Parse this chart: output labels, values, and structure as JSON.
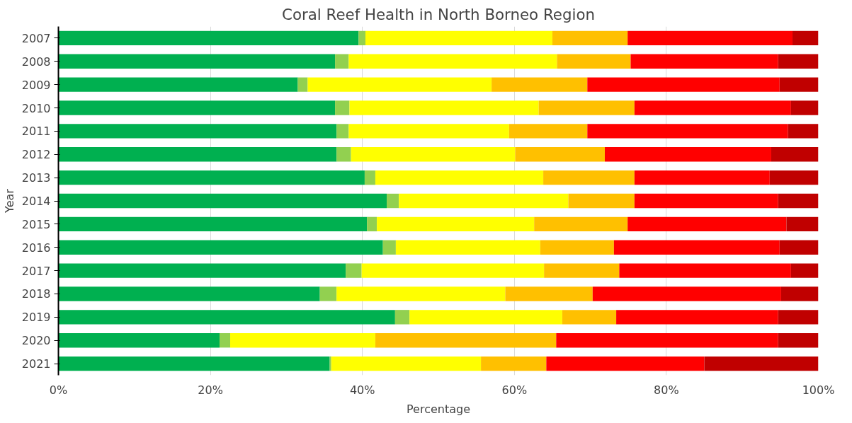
{
  "chart_data": {
    "type": "bar",
    "orientation": "horizontal",
    "stacked": true,
    "title": "Coral Reef Health in North Borneo Region",
    "xlabel": "Percentage",
    "ylabel": "Year",
    "categories": [
      "2007",
      "2008",
      "2009",
      "2010",
      "2011",
      "2012",
      "2013",
      "2014",
      "2015",
      "2016",
      "2017",
      "2018",
      "2019",
      "2020",
      "2021"
    ],
    "series": [
      {
        "color": "#00b050",
        "values": [
          39.5,
          36.4,
          31.5,
          36.4,
          36.6,
          36.6,
          40.3,
          43.2,
          40.6,
          42.7,
          37.8,
          34.4,
          44.3,
          21.2,
          35.7
        ]
      },
      {
        "color": "#92d050",
        "values": [
          0.9,
          1.8,
          1.3,
          1.9,
          1.6,
          1.9,
          1.4,
          1.6,
          1.3,
          1.7,
          2.1,
          2.2,
          1.9,
          1.4,
          0.2
        ]
      },
      {
        "color": "#ffff00",
        "values": [
          24.6,
          27.4,
          24.2,
          24.9,
          21.1,
          21.6,
          22.1,
          22.3,
          20.7,
          19.0,
          24.0,
          22.2,
          20.1,
          19.1,
          19.7
        ]
      },
      {
        "color": "#ffc000",
        "values": [
          9.9,
          9.7,
          12.6,
          12.6,
          10.3,
          11.8,
          12.0,
          8.7,
          12.3,
          9.7,
          9.9,
          11.5,
          7.1,
          23.8,
          8.6
        ]
      },
      {
        "color": "#ff0000",
        "values": [
          21.7,
          19.4,
          25.3,
          20.6,
          26.4,
          21.9,
          17.8,
          18.9,
          20.9,
          21.8,
          22.6,
          24.8,
          21.3,
          29.2,
          20.8
        ]
      },
      {
        "color": "#c00000",
        "values": [
          3.4,
          5.3,
          5.1,
          3.6,
          4.0,
          6.2,
          6.4,
          5.3,
          4.2,
          5.1,
          3.6,
          4.9,
          5.3,
          5.3,
          15.0
        ]
      }
    ],
    "xlim": [
      0,
      100
    ],
    "xticks": [
      {
        "value": 0,
        "label": "0%"
      },
      {
        "value": 20,
        "label": "20%"
      },
      {
        "value": 40,
        "label": "40%"
      },
      {
        "value": 60,
        "label": "60%"
      },
      {
        "value": 80,
        "label": "80%"
      },
      {
        "value": 100,
        "label": "100%"
      }
    ],
    "grid": "x"
  }
}
